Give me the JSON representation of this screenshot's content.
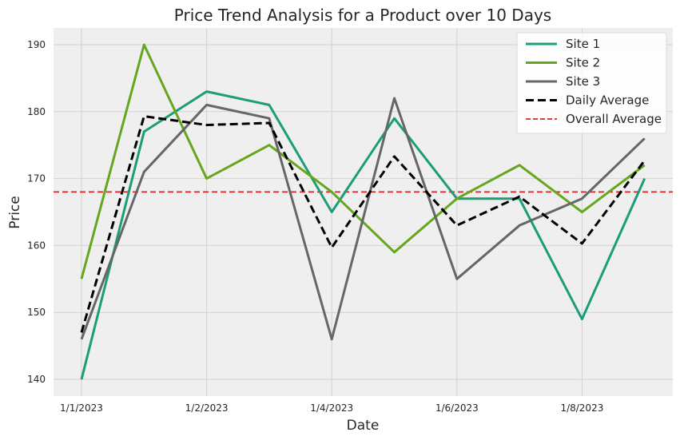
{
  "chart_data": {
    "type": "line",
    "title": "Price Trend Analysis for a Product over 10 Days",
    "xlabel": "Date",
    "ylabel": "Price",
    "x_index": [
      0,
      1,
      2,
      3,
      4,
      5,
      6,
      7,
      8,
      9
    ],
    "x_tick_positions": [
      0,
      2,
      4,
      6,
      8
    ],
    "x_tick_labels": [
      "1/1/2023",
      "1/2/2023",
      "1/4/2023",
      "1/6/2023",
      "1/8/2023"
    ],
    "ylim": [
      137.5,
      192.5
    ],
    "y_ticks": [
      140,
      150,
      160,
      170,
      180,
      190
    ],
    "grid": true,
    "legend_position": "top-right",
    "series": [
      {
        "name": "Site 1",
        "color": "#1b9e77",
        "style": "solid",
        "values": [
          140,
          177,
          183,
          181,
          165,
          179,
          167,
          167,
          149,
          170
        ]
      },
      {
        "name": "Site 2",
        "color": "#66a61e",
        "style": "solid",
        "values": [
          155,
          190,
          170,
          175,
          168,
          159,
          167,
          172,
          165,
          172
        ]
      },
      {
        "name": "Site 3",
        "color": "#666666",
        "style": "solid",
        "values": [
          146,
          171,
          181,
          179,
          146,
          182,
          155,
          163,
          167,
          176
        ]
      },
      {
        "name": "Daily Average",
        "color": "#000000",
        "style": "dashed",
        "values": [
          147,
          179.3,
          178,
          178.3,
          159.7,
          173.3,
          163,
          167.3,
          160.3,
          172.7
        ]
      }
    ],
    "reference_lines": [
      {
        "name": "Overall Average",
        "color": "#d62728",
        "style": "dashed",
        "value": 168
      }
    ]
  }
}
